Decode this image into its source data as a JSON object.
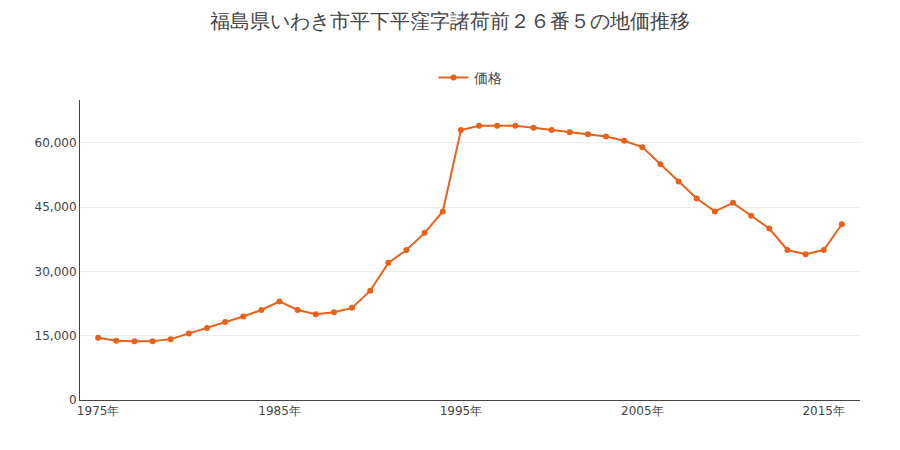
{
  "chart_data": {
    "type": "line",
    "title": "福島県いわき市平下平窪字諸荷前２６番５の地価推移",
    "x": [
      1975,
      1976,
      1977,
      1978,
      1979,
      1980,
      1981,
      1982,
      1983,
      1984,
      1985,
      1986,
      1987,
      1988,
      1989,
      1990,
      1991,
      1992,
      1993,
      1994,
      1995,
      1996,
      1997,
      1998,
      1999,
      2000,
      2001,
      2002,
      2003,
      2004,
      2005,
      2006,
      2007,
      2008,
      2009,
      2010,
      2011,
      2012,
      2013,
      2014,
      2015,
      2016
    ],
    "series": [
      {
        "name": "価格",
        "color": "#E8621A",
        "marker": "circle",
        "line_style": "solid",
        "values": [
          14500,
          13800,
          13700,
          13700,
          14200,
          15500,
          16800,
          18200,
          19500,
          21000,
          23000,
          21000,
          20000,
          20500,
          21500,
          25500,
          32000,
          35000,
          39000,
          44000,
          63000,
          64000,
          64000,
          64000,
          63500,
          63000,
          62500,
          62000,
          61500,
          60500,
          59000,
          55000,
          51000,
          47000,
          44000,
          46000,
          43000,
          40000,
          35000,
          34000,
          35000,
          41000
        ]
      }
    ],
    "xlim": [
      1974,
      2017
    ],
    "xticks": [
      {
        "value": 1975,
        "label": "1975年"
      },
      {
        "value": 1985,
        "label": "1985年"
      },
      {
        "value": 1995,
        "label": "1995年"
      },
      {
        "value": 2005,
        "label": "2005年"
      },
      {
        "value": 2015,
        "label": "2015年"
      }
    ],
    "ylim": [
      0,
      70000
    ],
    "yticks": [
      0,
      {
        "value": 15000,
        "label": "15,000"
      },
      {
        "value": 30000,
        "label": "30,000"
      },
      {
        "value": 45000,
        "label": "45,000"
      },
      {
        "value": 60000,
        "label": "60,000"
      }
    ],
    "grid": "y",
    "legend": "top"
  }
}
